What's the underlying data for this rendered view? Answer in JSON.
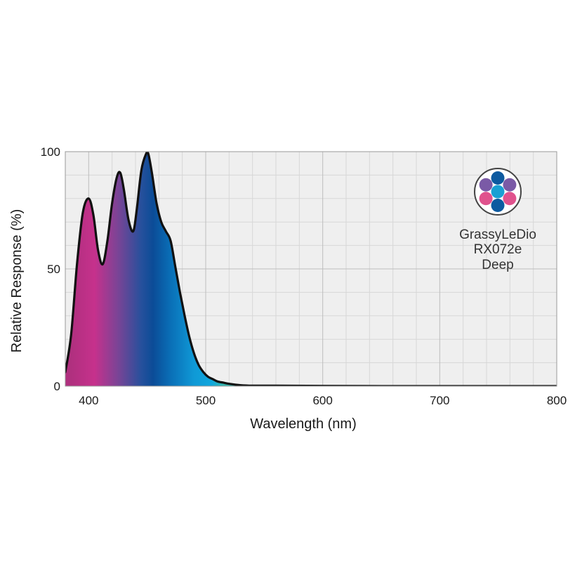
{
  "chart_data": {
    "type": "area",
    "xlabel": "Wavelength (nm)",
    "ylabel": "Relative Response (%)",
    "xlim": [
      380,
      800
    ],
    "ylim": [
      0,
      100
    ],
    "x_ticks": [
      400,
      500,
      600,
      700,
      800
    ],
    "y_ticks": [
      0,
      50,
      100
    ],
    "x_minor_step": 20,
    "y_minor_step": 10,
    "grid": true,
    "colors": {
      "plot_background": "#efefef",
      "grid_major": "#bdbdbd",
      "grid_minor": "#d7d7d7",
      "curve_stroke": "#111111",
      "gradient": [
        {
          "nm": 385,
          "color": "#b0307f"
        },
        {
          "nm": 405,
          "color": "#c6318c"
        },
        {
          "nm": 425,
          "color": "#7a4496"
        },
        {
          "nm": 445,
          "color": "#26509c"
        },
        {
          "nm": 455,
          "color": "#0b4c97"
        },
        {
          "nm": 470,
          "color": "#0a6fb7"
        },
        {
          "nm": 490,
          "color": "#0f99d6"
        },
        {
          "nm": 505,
          "color": "#10a7dd"
        },
        {
          "nm": 515,
          "color": "#34b8b0"
        }
      ]
    },
    "series": [
      {
        "x": [
          380,
          385,
          390,
          395,
          400,
          404,
          408,
          412,
          416,
          420,
          424,
          427,
          430,
          434,
          438,
          441,
          445,
          449,
          451,
          454,
          458,
          462,
          466,
          470,
          474,
          478,
          482,
          486,
          490,
          494,
          498,
          502,
          506,
          510,
          515,
          520,
          530,
          540,
          560,
          600,
          650,
          700,
          750,
          800
        ],
        "y": [
          6,
          22,
          52,
          74,
          80,
          73,
          58,
          52,
          62,
          78,
          89,
          91,
          84,
          71,
          66,
          75,
          92,
          99,
          99,
          91,
          78,
          70,
          66,
          62,
          51,
          40,
          30,
          21,
          14,
          9,
          6,
          4,
          3,
          2,
          1.5,
          1,
          0.4,
          0.2,
          0.2,
          0.1,
          0,
          0,
          0,
          0
        ]
      }
    ],
    "legend": {
      "lines": [
        "GrassyLeDio",
        "RX072e",
        "Deep"
      ],
      "placement": "top-right",
      "icon": "led-cluster-icon",
      "led_colors": [
        "#0d5aa0",
        "#7a5aa6",
        "#e0528d",
        "#1aa0d3",
        "#7a5aa6",
        "#e0528d",
        "#0d5aa0"
      ]
    }
  }
}
